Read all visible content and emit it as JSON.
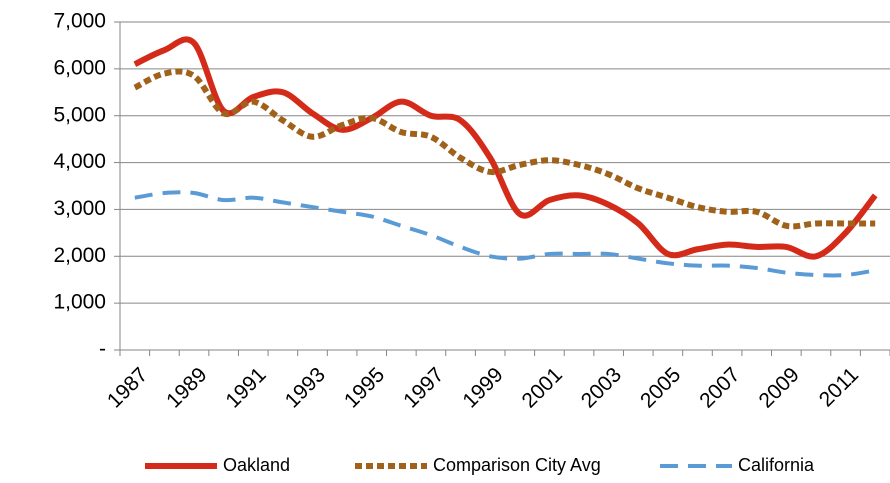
{
  "chart_data": {
    "type": "line",
    "categories": [
      "1987",
      null,
      "1989",
      null,
      "1991",
      null,
      "1993",
      null,
      "1995",
      null,
      "1997",
      null,
      "1999",
      null,
      "2001",
      null,
      "2003",
      null,
      "2005",
      null,
      "2007",
      null,
      "2009",
      null,
      "2011",
      null
    ],
    "series": [
      {
        "name": "Oakland",
        "color": "#d42a1a",
        "values": [
          6100,
          6400,
          6550,
          5100,
          5400,
          5500,
          5050,
          4700,
          4950,
          5300,
          5000,
          4900,
          4100,
          2900,
          3200,
          3300,
          3100,
          2700,
          2050,
          2150,
          2250,
          2200,
          2200,
          2000,
          2500,
          3300
        ]
      },
      {
        "name": "Comparison City Avg",
        "color": "#a0621a",
        "values": [
          5600,
          5900,
          5850,
          5050,
          5300,
          4900,
          4550,
          4800,
          4950,
          4650,
          4550,
          4100,
          3800,
          3950,
          4050,
          3950,
          3750,
          3450,
          3250,
          3050,
          2950,
          2950,
          2650,
          2700,
          2700,
          2700
        ]
      },
      {
        "name": "California",
        "color": "#5b9bd5",
        "values": [
          3250,
          3350,
          3350,
          3200,
          3250,
          3150,
          3050,
          2950,
          2850,
          2650,
          2450,
          2200,
          2000,
          1950,
          2050,
          2050,
          2050,
          1950,
          1850,
          1800,
          1800,
          1750,
          1650,
          1600,
          1600,
          1700
        ]
      }
    ],
    "ylim": [
      0,
      7000
    ],
    "yticks": [
      {
        "value": 0,
        "label": "-"
      },
      {
        "value": 1000,
        "label": "1,000"
      },
      {
        "value": 2000,
        "label": "2,000"
      },
      {
        "value": 3000,
        "label": "3,000"
      },
      {
        "value": 4000,
        "label": "4,000"
      },
      {
        "value": 5000,
        "label": "5,000"
      },
      {
        "value": 6000,
        "label": "6,000"
      },
      {
        "value": 7000,
        "label": "7,000"
      }
    ],
    "grid": true,
    "legend": "bottom"
  }
}
